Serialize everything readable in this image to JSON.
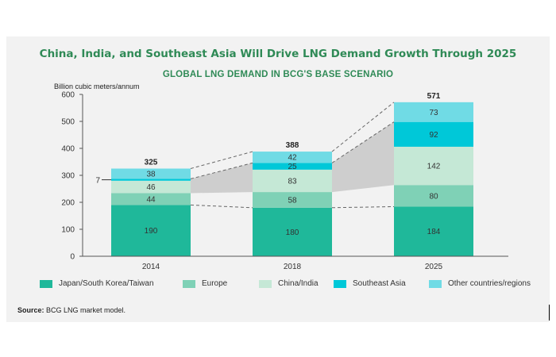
{
  "title": "China, India, and Southeast Asia Will Drive LNG Demand Growth Through 2025",
  "subtitle": "GLOBAL LNG DEMAND IN BCG'S BASE SCENARIO",
  "source_label": "Source:",
  "source_text": "BCG LNG market model.",
  "chart_data": {
    "type": "bar",
    "stacked": true,
    "ylabel": "Billion cubic meters/annum",
    "ylim": [
      0,
      600
    ],
    "yticks": [
      0,
      100,
      200,
      300,
      400,
      500,
      600
    ],
    "categories": [
      "2014",
      "2018",
      "2025"
    ],
    "totals": [
      325,
      388,
      571
    ],
    "series": [
      {
        "name": "Japan/South Korea/Taiwan",
        "color": "#1fb89a",
        "values": [
          190,
          180,
          184
        ],
        "labels": [
          "190",
          "180",
          "184"
        ]
      },
      {
        "name": "Europe",
        "color": "#7fd1b6",
        "values": [
          44,
          58,
          80
        ],
        "labels": [
          "44",
          "58",
          "80"
        ]
      },
      {
        "name": "China/India",
        "color": "#c5e8d6",
        "values": [
          46,
          83,
          142
        ],
        "labels": [
          "46",
          "83",
          "142"
        ]
      },
      {
        "name": "Southeast Asia",
        "color": "#00c8d8",
        "values": [
          7,
          25,
          92
        ],
        "labels": [
          "7",
          "25",
          "92"
        ]
      },
      {
        "name": "Other countries/regions",
        "color": "#70dbe5",
        "values": [
          38,
          42,
          73
        ],
        "labels": [
          "38",
          "42",
          "73"
        ]
      }
    ],
    "growth_band_color": "#c8c8c8",
    "grid": false,
    "legend_position": "bottom"
  }
}
